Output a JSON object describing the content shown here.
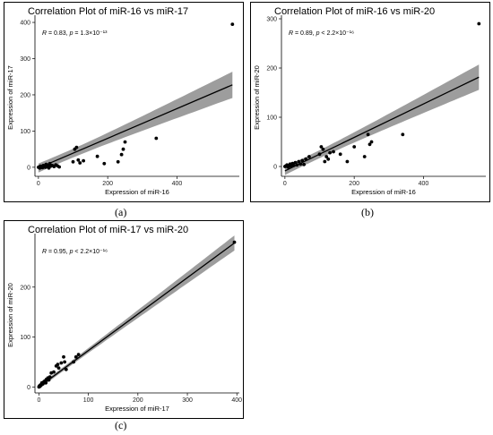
{
  "captions": [
    "(a)",
    "(b)",
    "(c)"
  ],
  "chart_data": [
    {
      "type": "scatter",
      "title": "Correlation Plot of miR-16 vs miR-17",
      "xlabel": "Expression of miR-16",
      "ylabel": "Expression of miR-17",
      "annotation": {
        "r": "R = 0.83,",
        "p_label": "p",
        "p_value": "= 1.3×10⁻¹³"
      },
      "xlim": [
        -10,
        580
      ],
      "ylim": [
        -25,
        410
      ],
      "xticks": [
        0,
        200,
        400
      ],
      "yticks": [
        0,
        100,
        200,
        300,
        400
      ],
      "x": [
        0,
        2,
        4,
        6,
        8,
        10,
        12,
        14,
        16,
        18,
        20,
        22,
        25,
        28,
        30,
        33,
        35,
        40,
        45,
        50,
        55,
        60,
        100,
        105,
        110,
        115,
        120,
        130,
        170,
        190,
        230,
        240,
        245,
        250,
        340,
        560
      ],
      "y": [
        0,
        1,
        -2,
        3,
        0,
        2,
        -1,
        5,
        1,
        4,
        0,
        8,
        2,
        6,
        -2,
        10,
        3,
        5,
        2,
        7,
        4,
        1,
        15,
        50,
        55,
        20,
        12,
        18,
        30,
        10,
        15,
        35,
        50,
        70,
        80,
        395
      ],
      "fit": {
        "slope": 0.41,
        "intercept": -2,
        "se_intercept": 6,
        "se_slope": 0.035,
        "xmean": 60
      }
    },
    {
      "type": "scatter",
      "title": "Correlation Plot of miR-16 vs miR-20",
      "xlabel": "Expression of miR-16",
      "ylabel": "Expression of miR-20",
      "annotation": {
        "r": "R = 0.89,",
        "p_label": "p",
        "p_value": "< 2.2×10⁻¹⁶"
      },
      "xlim": [
        -10,
        580
      ],
      "ylim": [
        -20,
        300
      ],
      "xticks": [
        0,
        200,
        400
      ],
      "yticks": [
        0,
        100,
        200,
        300
      ],
      "x": [
        0,
        3,
        6,
        9,
        12,
        15,
        18,
        22,
        25,
        30,
        35,
        40,
        45,
        50,
        55,
        60,
        70,
        100,
        105,
        110,
        115,
        120,
        125,
        130,
        140,
        160,
        180,
        200,
        230,
        240,
        245,
        250,
        340,
        560
      ],
      "y": [
        0,
        1,
        3,
        -1,
        2,
        5,
        0,
        6,
        2,
        8,
        3,
        10,
        5,
        12,
        4,
        15,
        20,
        25,
        40,
        35,
        10,
        20,
        15,
        28,
        30,
        25,
        10,
        40,
        20,
        65,
        45,
        50,
        65,
        290
      ],
      "fit": {
        "slope": 0.34,
        "intercept": -9,
        "se_intercept": 4,
        "se_slope": 0.025,
        "xmean": 60
      }
    },
    {
      "type": "scatter",
      "title": "Correlation Plot of miR-17 vs miR-20",
      "xlabel": "Expression of miR-17",
      "ylabel": "Expression of miR-20",
      "annotation": {
        "r": "R = 0.95,",
        "p_label": "p",
        "p_value": "< 2.2×10⁻¹⁶"
      },
      "xlim": [
        -8,
        405
      ],
      "ylim": [
        -12,
        300
      ],
      "xticks": [
        0,
        100,
        200,
        300,
        400
      ],
      "yticks": [
        0,
        100,
        200
      ],
      "x": [
        0,
        1,
        2,
        3,
        4,
        5,
        6,
        8,
        10,
        12,
        14,
        15,
        18,
        20,
        22,
        25,
        30,
        35,
        38,
        40,
        45,
        50,
        52,
        55,
        70,
        75,
        80,
        395
      ],
      "y": [
        0,
        2,
        1,
        4,
        3,
        5,
        8,
        6,
        10,
        12,
        8,
        15,
        18,
        14,
        20,
        28,
        30,
        42,
        45,
        38,
        48,
        60,
        50,
        35,
        50,
        60,
        65,
        290
      ],
      "fit": {
        "slope": 0.73,
        "intercept": 0,
        "se_intercept": 2,
        "se_slope": 0.02,
        "xmean": 25
      }
    }
  ]
}
